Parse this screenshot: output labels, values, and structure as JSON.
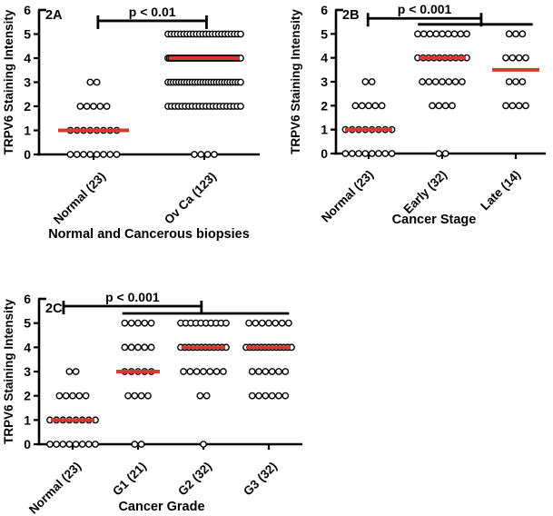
{
  "figure": {
    "background": "#ffffff"
  },
  "colors": {
    "axis": "#000000",
    "text": "#000000",
    "dot_outline": "#000000",
    "dot_fill": "#ffffff",
    "median_line": "#d63a2e"
  },
  "chart_data": [
    {
      "type": "scatter",
      "panel_label": "2A",
      "ylabel": "TRPV6 Staining Intensity",
      "xlabel": "Normal and Cancerous biopsies",
      "ylim": [
        0,
        6
      ],
      "yticks": [
        "0",
        "1",
        "2",
        "3",
        "4",
        "5",
        "6"
      ],
      "categories": [
        "Normal (23)",
        "Ov Ca (123)"
      ],
      "series": [
        {
          "category": "Normal (23)",
          "n": 23,
          "intensity_counts": {
            "0": 8,
            "1": 8,
            "2": 5,
            "3": 2
          },
          "median": 1
        },
        {
          "category": "Ov Ca (123)",
          "n": 123,
          "intensity_counts": {
            "0": 4,
            "2": 22,
            "3": 28,
            "4": 45,
            "5": 24
          },
          "median": 4
        }
      ],
      "significance": [
        {
          "label": "p < 0.01",
          "from_cat": 0.04,
          "to_cat": 1.02,
          "y_value": 5.55,
          "end_ticks": true
        }
      ]
    },
    {
      "type": "scatter",
      "panel_label": "2B",
      "ylabel": "TRPV6 Staining Intensity",
      "xlabel": "Cancer Stage",
      "ylim": [
        0,
        6
      ],
      "yticks": [
        "0",
        "1",
        "2",
        "3",
        "4",
        "5",
        "6"
      ],
      "categories": [
        "Normal (23)",
        "Early (32)",
        "Late (14)"
      ],
      "series": [
        {
          "category": "Normal (23)",
          "n": 23,
          "intensity_counts": {
            "0": 8,
            "1": 8,
            "2": 5,
            "3": 2
          },
          "median": 1
        },
        {
          "category": "Early (32)",
          "n": 32,
          "intensity_counts": {
            "0": 2,
            "2": 4,
            "3": 7,
            "4": 10,
            "5": 9
          },
          "median": 4
        },
        {
          "category": "Late (14)",
          "n": 14,
          "intensity_counts": {
            "2": 4,
            "3": 3,
            "4": 4,
            "5": 3
          },
          "median": 3.5
        }
      ],
      "significance": [
        {
          "label": "p < 0.001",
          "from_cat": -0.01,
          "to_cat": 1.53,
          "y_value": 5.65,
          "end_ticks": true
        },
        {
          "label": "",
          "from_cat": 0.67,
          "to_cat": 2.23,
          "y_value": 5.4,
          "end_ticks": false
        }
      ]
    },
    {
      "type": "scatter",
      "panel_label": "2C",
      "ylabel": "TRPV6 Staining Intensity",
      "xlabel": "Cancer Grade",
      "ylim": [
        0,
        6
      ],
      "yticks": [
        "0",
        "1",
        "2",
        "3",
        "4",
        "5",
        "6"
      ],
      "categories": [
        "Normal (23)",
        "G1 (21)",
        "G2 (32)",
        "G3 (32)"
      ],
      "series": [
        {
          "category": "Normal (23)",
          "n": 23,
          "intensity_counts": {
            "0": 8,
            "1": 8,
            "2": 5,
            "3": 2
          },
          "median": 1
        },
        {
          "category": "G1 (21)",
          "n": 21,
          "intensity_counts": {
            "0": 2,
            "2": 4,
            "3": 5,
            "4": 5,
            "5": 5
          },
          "median": 3
        },
        {
          "category": "G2 (32)",
          "n": 32,
          "intensity_counts": {
            "0": 1,
            "2": 2,
            "3": 7,
            "4": 12,
            "5": 10
          },
          "median": 4
        },
        {
          "category": "G3 (32)",
          "n": 32,
          "intensity_counts": {
            "2": 6,
            "3": 6,
            "4": 13,
            "5": 7
          },
          "median": 4
        }
      ],
      "significance": [
        {
          "label": "p < 0.001",
          "from_cat": -0.14,
          "to_cat": 1.97,
          "y_value": 5.7,
          "end_ticks": true
        },
        {
          "label": "",
          "from_cat": 0.76,
          "to_cat": 3.31,
          "y_value": 5.4,
          "end_ticks": false
        }
      ]
    }
  ]
}
